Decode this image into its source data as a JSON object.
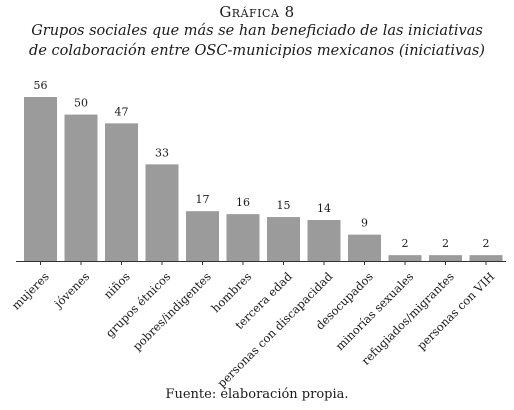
{
  "figure": {
    "label": "Gráfica 8",
    "title_line1": "Grupos sociales que más se han beneficiado de las iniciativas",
    "title_line2": "de colaboración entre OSC-municipios mexicanos (iniciativas)",
    "source": "Fuente: elaboración propia."
  },
  "chart_data": {
    "type": "bar",
    "title": "Grupos sociales que más se han beneficiado de las iniciativas de colaboración entre OSC-municipios mexicanos (iniciativas)",
    "categories": [
      "mujeres",
      "jóvenes",
      "niños",
      "grupos étnicos",
      "pobres/indigentes",
      "hombres",
      "tercera edad",
      "personas con discapacidad",
      "desocupados",
      "minorías sexuales",
      "refugiados/migrantes",
      "personas con VIH"
    ],
    "values": [
      56,
      50,
      47,
      33,
      17,
      16,
      15,
      14,
      9,
      2,
      2,
      2
    ],
    "xlabel": "",
    "ylabel": "",
    "ylim": [
      0,
      56
    ],
    "grid": false,
    "legend": "none",
    "bar_color": "#9b9b9b",
    "axis_color": "#333333"
  }
}
